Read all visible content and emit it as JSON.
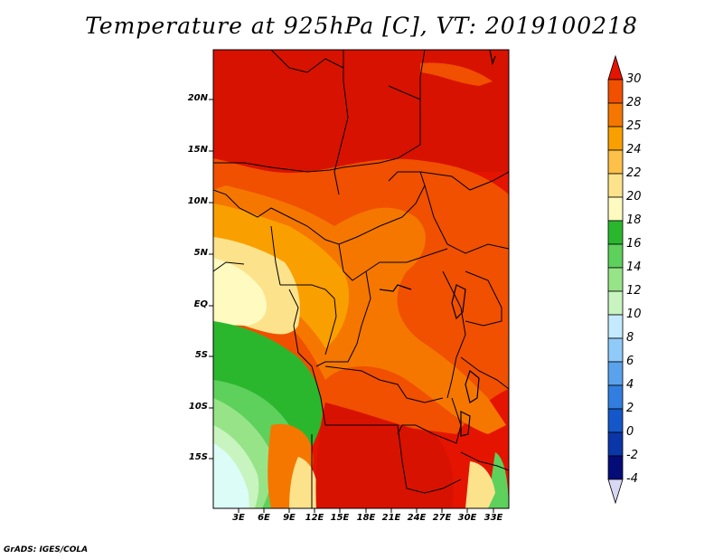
{
  "title": "Temperature at 925hPa [C], VT: 2019100218",
  "credit": "GrADS: IGES/COLA",
  "map": {
    "lat_labels": [
      "20N",
      "15N",
      "10N",
      "5N",
      "EQ",
      "5S",
      "10S",
      "15S"
    ],
    "lon_labels": [
      "3E",
      "6E",
      "9E",
      "12E",
      "15E",
      "18E",
      "21E",
      "24E",
      "27E",
      "30E",
      "33E"
    ]
  },
  "colorbar": {
    "labels": [
      "30",
      "28",
      "25",
      "24",
      "22",
      "20",
      "18",
      "16",
      "14",
      "12",
      "10",
      "8",
      "6",
      "4",
      "2",
      "0",
      "-2",
      "-4"
    ],
    "colors": [
      "#e51400",
      "#f05000",
      "#f57700",
      "#fa9f00",
      "#fdc048",
      "#fde28c",
      "#fffac0",
      "#2ab72e",
      "#5ed05c",
      "#97e488",
      "#c8f4c0",
      "#c4eaff",
      "#90caf8",
      "#5aa2ec",
      "#327ee0",
      "#1457c8",
      "#0a36a8",
      "#040c78",
      "#d8d8f4"
    ]
  }
}
